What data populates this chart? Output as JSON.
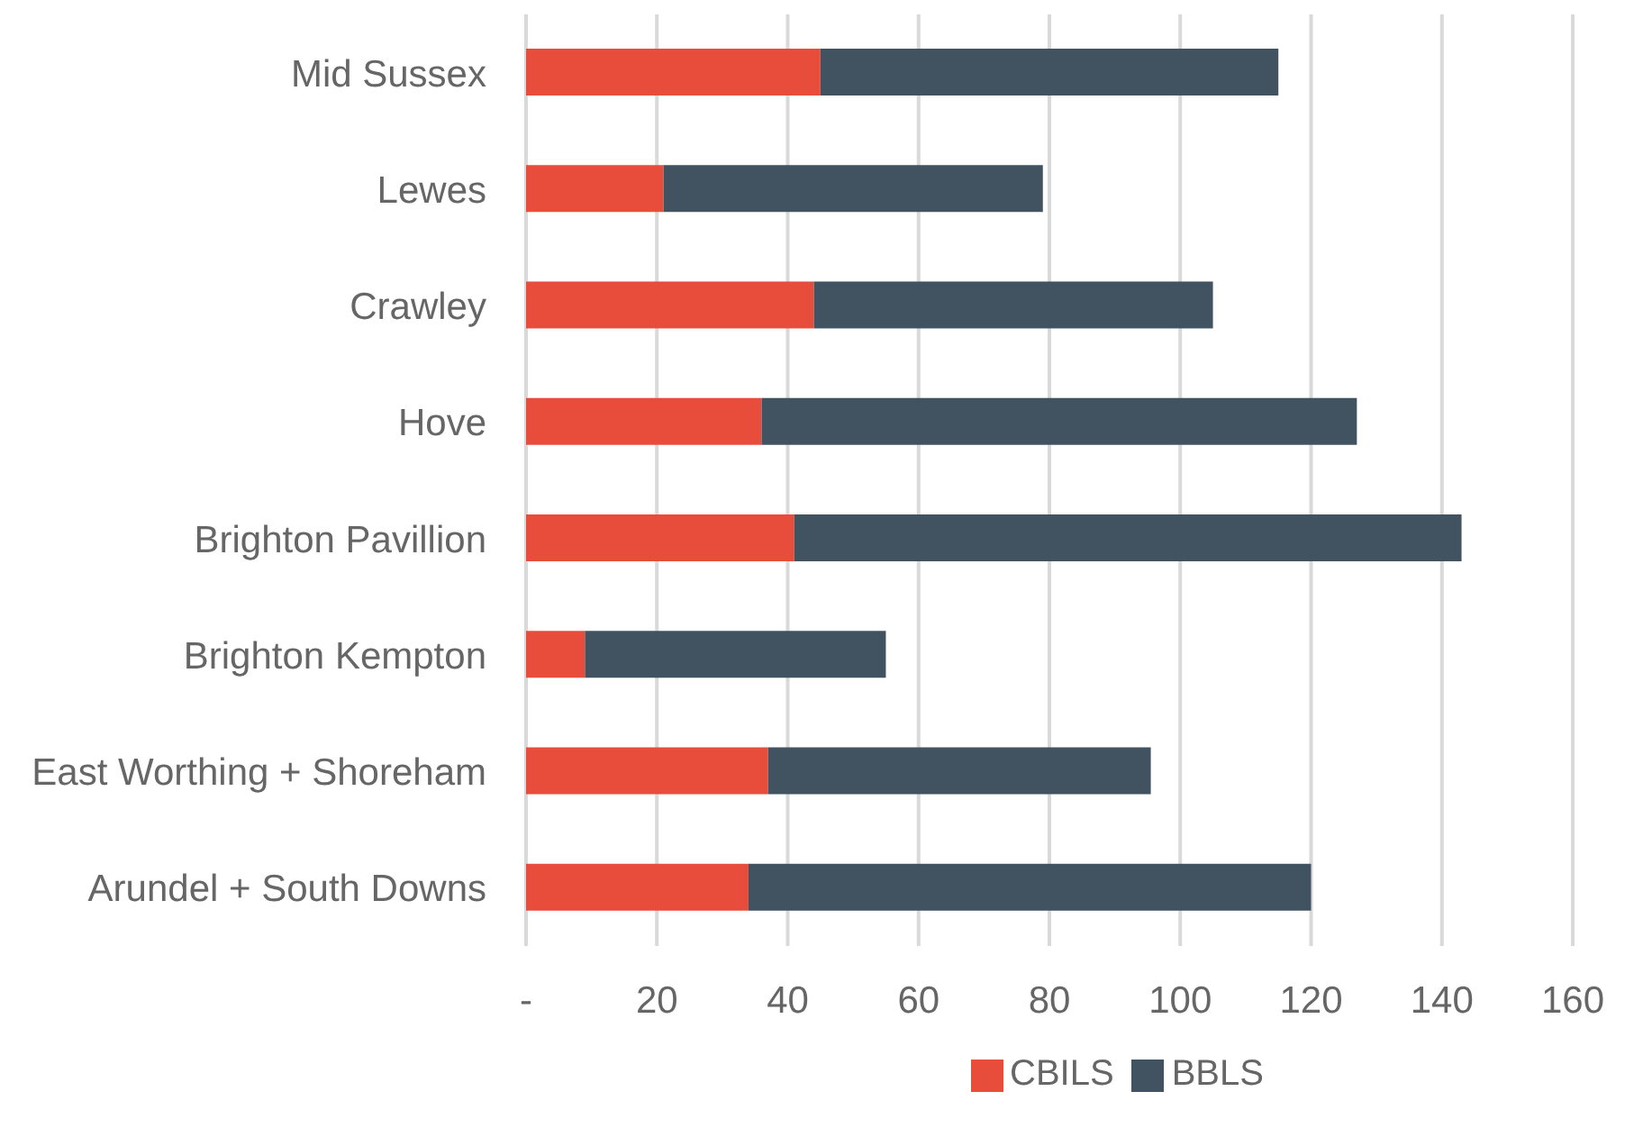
{
  "chart_data": {
    "type": "bar",
    "orientation": "horizontal",
    "stacked": true,
    "categories": [
      "Mid Sussex",
      "Lewes",
      "Crawley",
      "Hove",
      "Brighton Pavillion",
      "Brighton Kempton",
      "East Worthing + Shoreham",
      "Arundel + South Downs"
    ],
    "series": [
      {
        "name": "CBILS",
        "color": "#e84c3a",
        "values": [
          45,
          21,
          44,
          36,
          41,
          9,
          37,
          34
        ]
      },
      {
        "name": "BBLS",
        "color": "#415361",
        "values": [
          70,
          58,
          61,
          91,
          102,
          46,
          58.5,
          86
        ]
      }
    ],
    "xlim": [
      0,
      160
    ],
    "xticks": [
      {
        "value": 0,
        "label": "-"
      },
      20,
      40,
      60,
      80,
      100,
      120,
      140,
      160
    ],
    "grid": "x",
    "legend": "bottom"
  }
}
